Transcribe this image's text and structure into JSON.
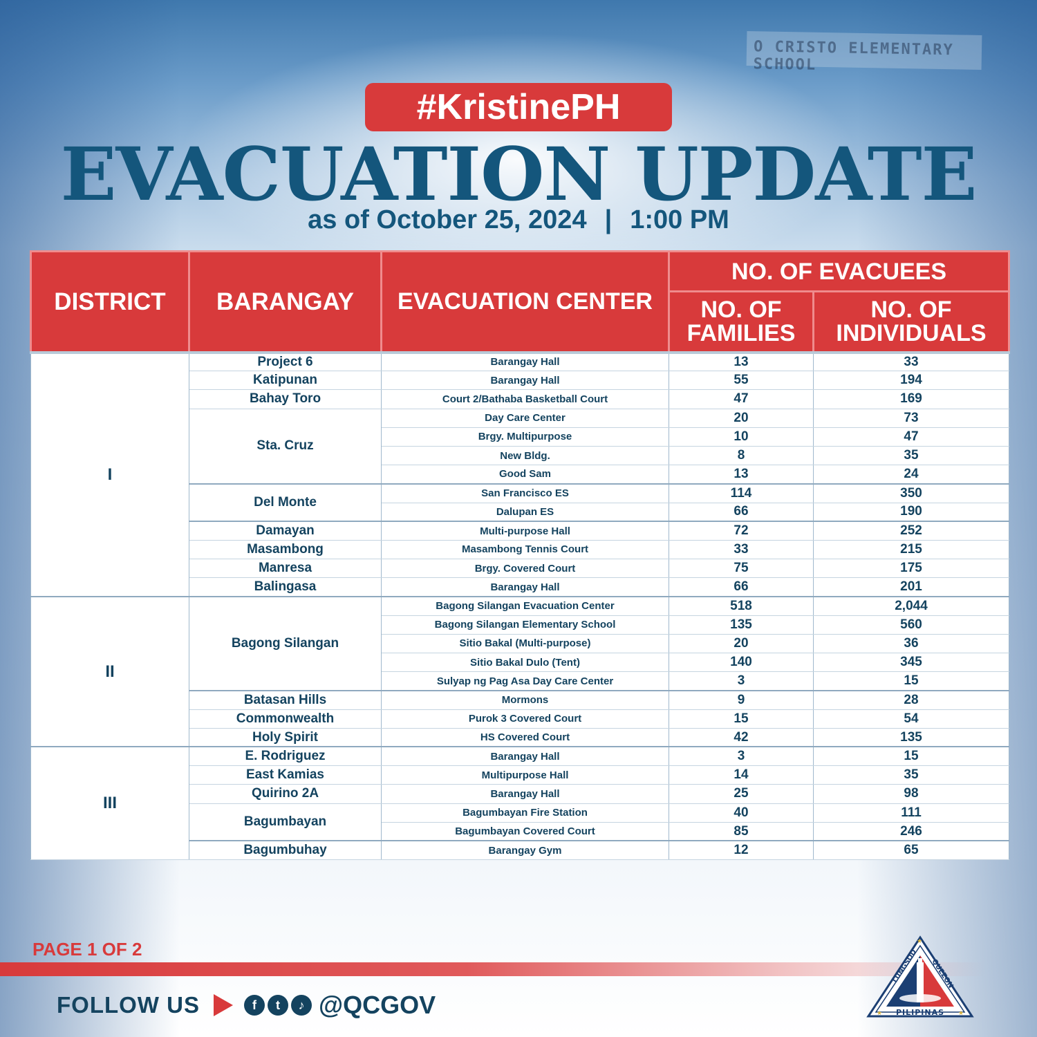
{
  "header": {
    "background_sign": "O CRISTO ELEMENTARY SCHOOL",
    "hashtag": "#KristinePH",
    "title": "EVACUATION UPDATE",
    "date": "as of October 25, 2024",
    "separator": "|",
    "time": "1:00 PM"
  },
  "table": {
    "headers": {
      "district": "DISTRICT",
      "barangay": "BARANGAY",
      "center": "EVACUATION CENTER",
      "evacuees": "NO. OF EVACUEES",
      "families": "NO. OF FAMILIES",
      "individuals": "NO. OF INDIVIDUALS"
    },
    "rows": [
      {
        "center": "Barangay Hall",
        "families": "13",
        "individuals": "33"
      },
      {
        "center": "Barangay Hall",
        "families": "55",
        "individuals": "194"
      },
      {
        "center": "Court 2/Bathaba Basketball Court",
        "families": "47",
        "individuals": "169"
      },
      {
        "center": "Day Care Center",
        "families": "20",
        "individuals": "73"
      },
      {
        "center": "Brgy. Multipurpose",
        "families": "10",
        "individuals": "47"
      },
      {
        "center": "New Bldg.",
        "families": "8",
        "individuals": "35"
      },
      {
        "center": "Good Sam",
        "families": "13",
        "individuals": "24"
      },
      {
        "center": "San Francisco ES",
        "families": "114",
        "individuals": "350"
      },
      {
        "center": "Dalupan ES",
        "families": "66",
        "individuals": "190"
      },
      {
        "center": "Multi-purpose Hall",
        "families": "72",
        "individuals": "252"
      },
      {
        "center": "Masambong Tennis Court",
        "families": "33",
        "individuals": "215"
      },
      {
        "center": "Brgy. Covered Court",
        "families": "75",
        "individuals": "175"
      },
      {
        "center": "Barangay Hall",
        "families": "66",
        "individuals": "201"
      },
      {
        "center": "Bagong Silangan Evacuation Center",
        "families": "518",
        "individuals": "2,044"
      },
      {
        "center": "Bagong Silangan Elementary School",
        "families": "135",
        "individuals": "560"
      },
      {
        "center": "Sitio Bakal (Multi-purpose)",
        "families": "20",
        "individuals": "36"
      },
      {
        "center": "Sitio Bakal Dulo (Tent)",
        "families": "140",
        "individuals": "345"
      },
      {
        "center": "Sulyap ng Pag Asa Day Care Center",
        "families": "3",
        "individuals": "15"
      },
      {
        "center": "Mormons",
        "families": "9",
        "individuals": "28"
      },
      {
        "center": "Purok 3 Covered Court",
        "families": "15",
        "individuals": "54"
      },
      {
        "center": "HS Covered Court",
        "families": "42",
        "individuals": "135"
      },
      {
        "center": "Barangay Hall",
        "families": "3",
        "individuals": "15"
      },
      {
        "center": "Multipurpose Hall",
        "families": "14",
        "individuals": "35"
      },
      {
        "center": "Barangay Hall",
        "families": "25",
        "individuals": "98"
      },
      {
        "center": "Bagumbayan Fire Station",
        "families": "40",
        "individuals": "111"
      },
      {
        "center": "Bagumbayan Covered Court",
        "families": "85",
        "individuals": "246"
      },
      {
        "center": "Barangay Gym",
        "families": "12",
        "individuals": "65"
      }
    ],
    "barangays": [
      "Project 6",
      "Katipunan",
      "Bahay Toro",
      "Sta. Cruz",
      "Del Monte",
      "Damayan",
      "Masambong",
      "Manresa",
      "Balingasa",
      "Bagong Silangan",
      "Batasan Hills",
      "Commonwealth",
      "Holy Spirit",
      "E. Rodriguez",
      "East Kamias",
      "Quirino 2A",
      "Bagumbayan",
      "Bagumbuhay"
    ],
    "districts": [
      "I",
      "II",
      "III"
    ]
  },
  "footer": {
    "page": "PAGE 1 OF 2",
    "follow": "FOLLOW US",
    "handle": "@QCGOV",
    "social_icons": [
      "facebook-icon",
      "twitter-icon",
      "tiktok-icon"
    ],
    "seal_text_top": "LUNGSOD QUEZON",
    "seal_text_bottom": "PILIPINAS"
  },
  "colors": {
    "accent_red": "#d83a3b",
    "title_blue": "#14567c",
    "text_navy": "#14435f"
  }
}
